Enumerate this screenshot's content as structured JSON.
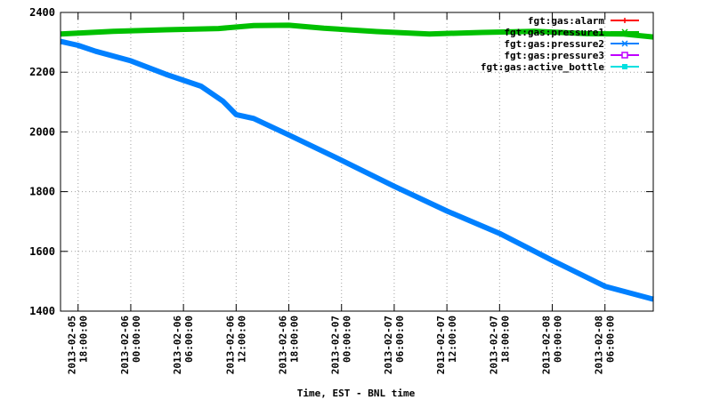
{
  "chart_data": {
    "type": "line",
    "title": "",
    "xlabel": "Time, EST - BNL time",
    "ylabel": "",
    "ylim": [
      1400,
      2400
    ],
    "xlim": [
      "2013-02-05 16:00",
      "2013-02-08 11:30"
    ],
    "y_ticks": [
      "1400",
      "1600",
      "1800",
      "2000",
      "2200",
      "2400"
    ],
    "x_ticks": [
      {
        "date": "2013-02-05",
        "time": "18:00:00",
        "at": "2013-02-05 18:00"
      },
      {
        "date": "2013-02-06",
        "time": "00:00:00",
        "at": "2013-02-06 00:00"
      },
      {
        "date": "2013-02-06",
        "time": "06:00:00",
        "at": "2013-02-06 06:00"
      },
      {
        "date": "2013-02-06",
        "time": "12:00:00",
        "at": "2013-02-06 12:00"
      },
      {
        "date": "2013-02-06",
        "time": "18:00:00",
        "at": "2013-02-06 18:00"
      },
      {
        "date": "2013-02-07",
        "time": "00:00:00",
        "at": "2013-02-07 00:00"
      },
      {
        "date": "2013-02-07",
        "time": "06:00:00",
        "at": "2013-02-07 06:00"
      },
      {
        "date": "2013-02-07",
        "time": "12:00:00",
        "at": "2013-02-07 12:00"
      },
      {
        "date": "2013-02-07",
        "time": "18:00:00",
        "at": "2013-02-07 18:00"
      },
      {
        "date": "2013-02-08",
        "time": "00:00:00",
        "at": "2013-02-08 00:00"
      },
      {
        "date": "2013-02-08",
        "time": "06:00:00",
        "at": "2013-02-08 06:00"
      }
    ],
    "grid": true,
    "legend_position": "top-right",
    "series": [
      {
        "name": "fgt:gas:alarm",
        "color": "#ff0000",
        "marker": "plus",
        "x": [],
        "y": []
      },
      {
        "name": "fgt:gas:pressure1",
        "color": "#00c000",
        "marker": "cross",
        "x": [
          "2013-02-05 16:00",
          "2013-02-05 22:00",
          "2013-02-06 04:00",
          "2013-02-06 10:00",
          "2013-02-06 14:00",
          "2013-02-06 18:00",
          "2013-02-06 22:00",
          "2013-02-07 04:00",
          "2013-02-07 10:00",
          "2013-02-07 16:00",
          "2013-02-07 22:00",
          "2013-02-08 04:00",
          "2013-02-08 08:00",
          "2013-02-08 11:30"
        ],
        "y": [
          2328,
          2337,
          2342,
          2346,
          2356,
          2357,
          2347,
          2336,
          2328,
          2333,
          2337,
          2329,
          2328,
          2318
        ]
      },
      {
        "name": "fgt:gas:pressure2",
        "color": "#0080ff",
        "marker": "star",
        "x": [
          "2013-02-05 16:00",
          "2013-02-05 18:00",
          "2013-02-05 20:00",
          "2013-02-06 00:00",
          "2013-02-06 04:00",
          "2013-02-06 08:00",
          "2013-02-06 10:30",
          "2013-02-06 12:00",
          "2013-02-06 14:00",
          "2013-02-06 18:00",
          "2013-02-07 00:00",
          "2013-02-07 06:00",
          "2013-02-07 12:00",
          "2013-02-07 18:00",
          "2013-02-08 00:00",
          "2013-02-08 06:00",
          "2013-02-08 11:30"
        ],
        "y": [
          2303,
          2290,
          2270,
          2238,
          2193,
          2153,
          2103,
          2058,
          2045,
          1990,
          1905,
          1818,
          1735,
          1660,
          1570,
          1483,
          1440
        ]
      },
      {
        "name": "fgt:gas:pressure3",
        "color": "#c000ff",
        "marker": "square",
        "x": [],
        "y": []
      },
      {
        "name": "fgt:gas:active_bottle",
        "color": "#00e0e0",
        "marker": "filled-square",
        "x": [],
        "y": []
      }
    ]
  }
}
